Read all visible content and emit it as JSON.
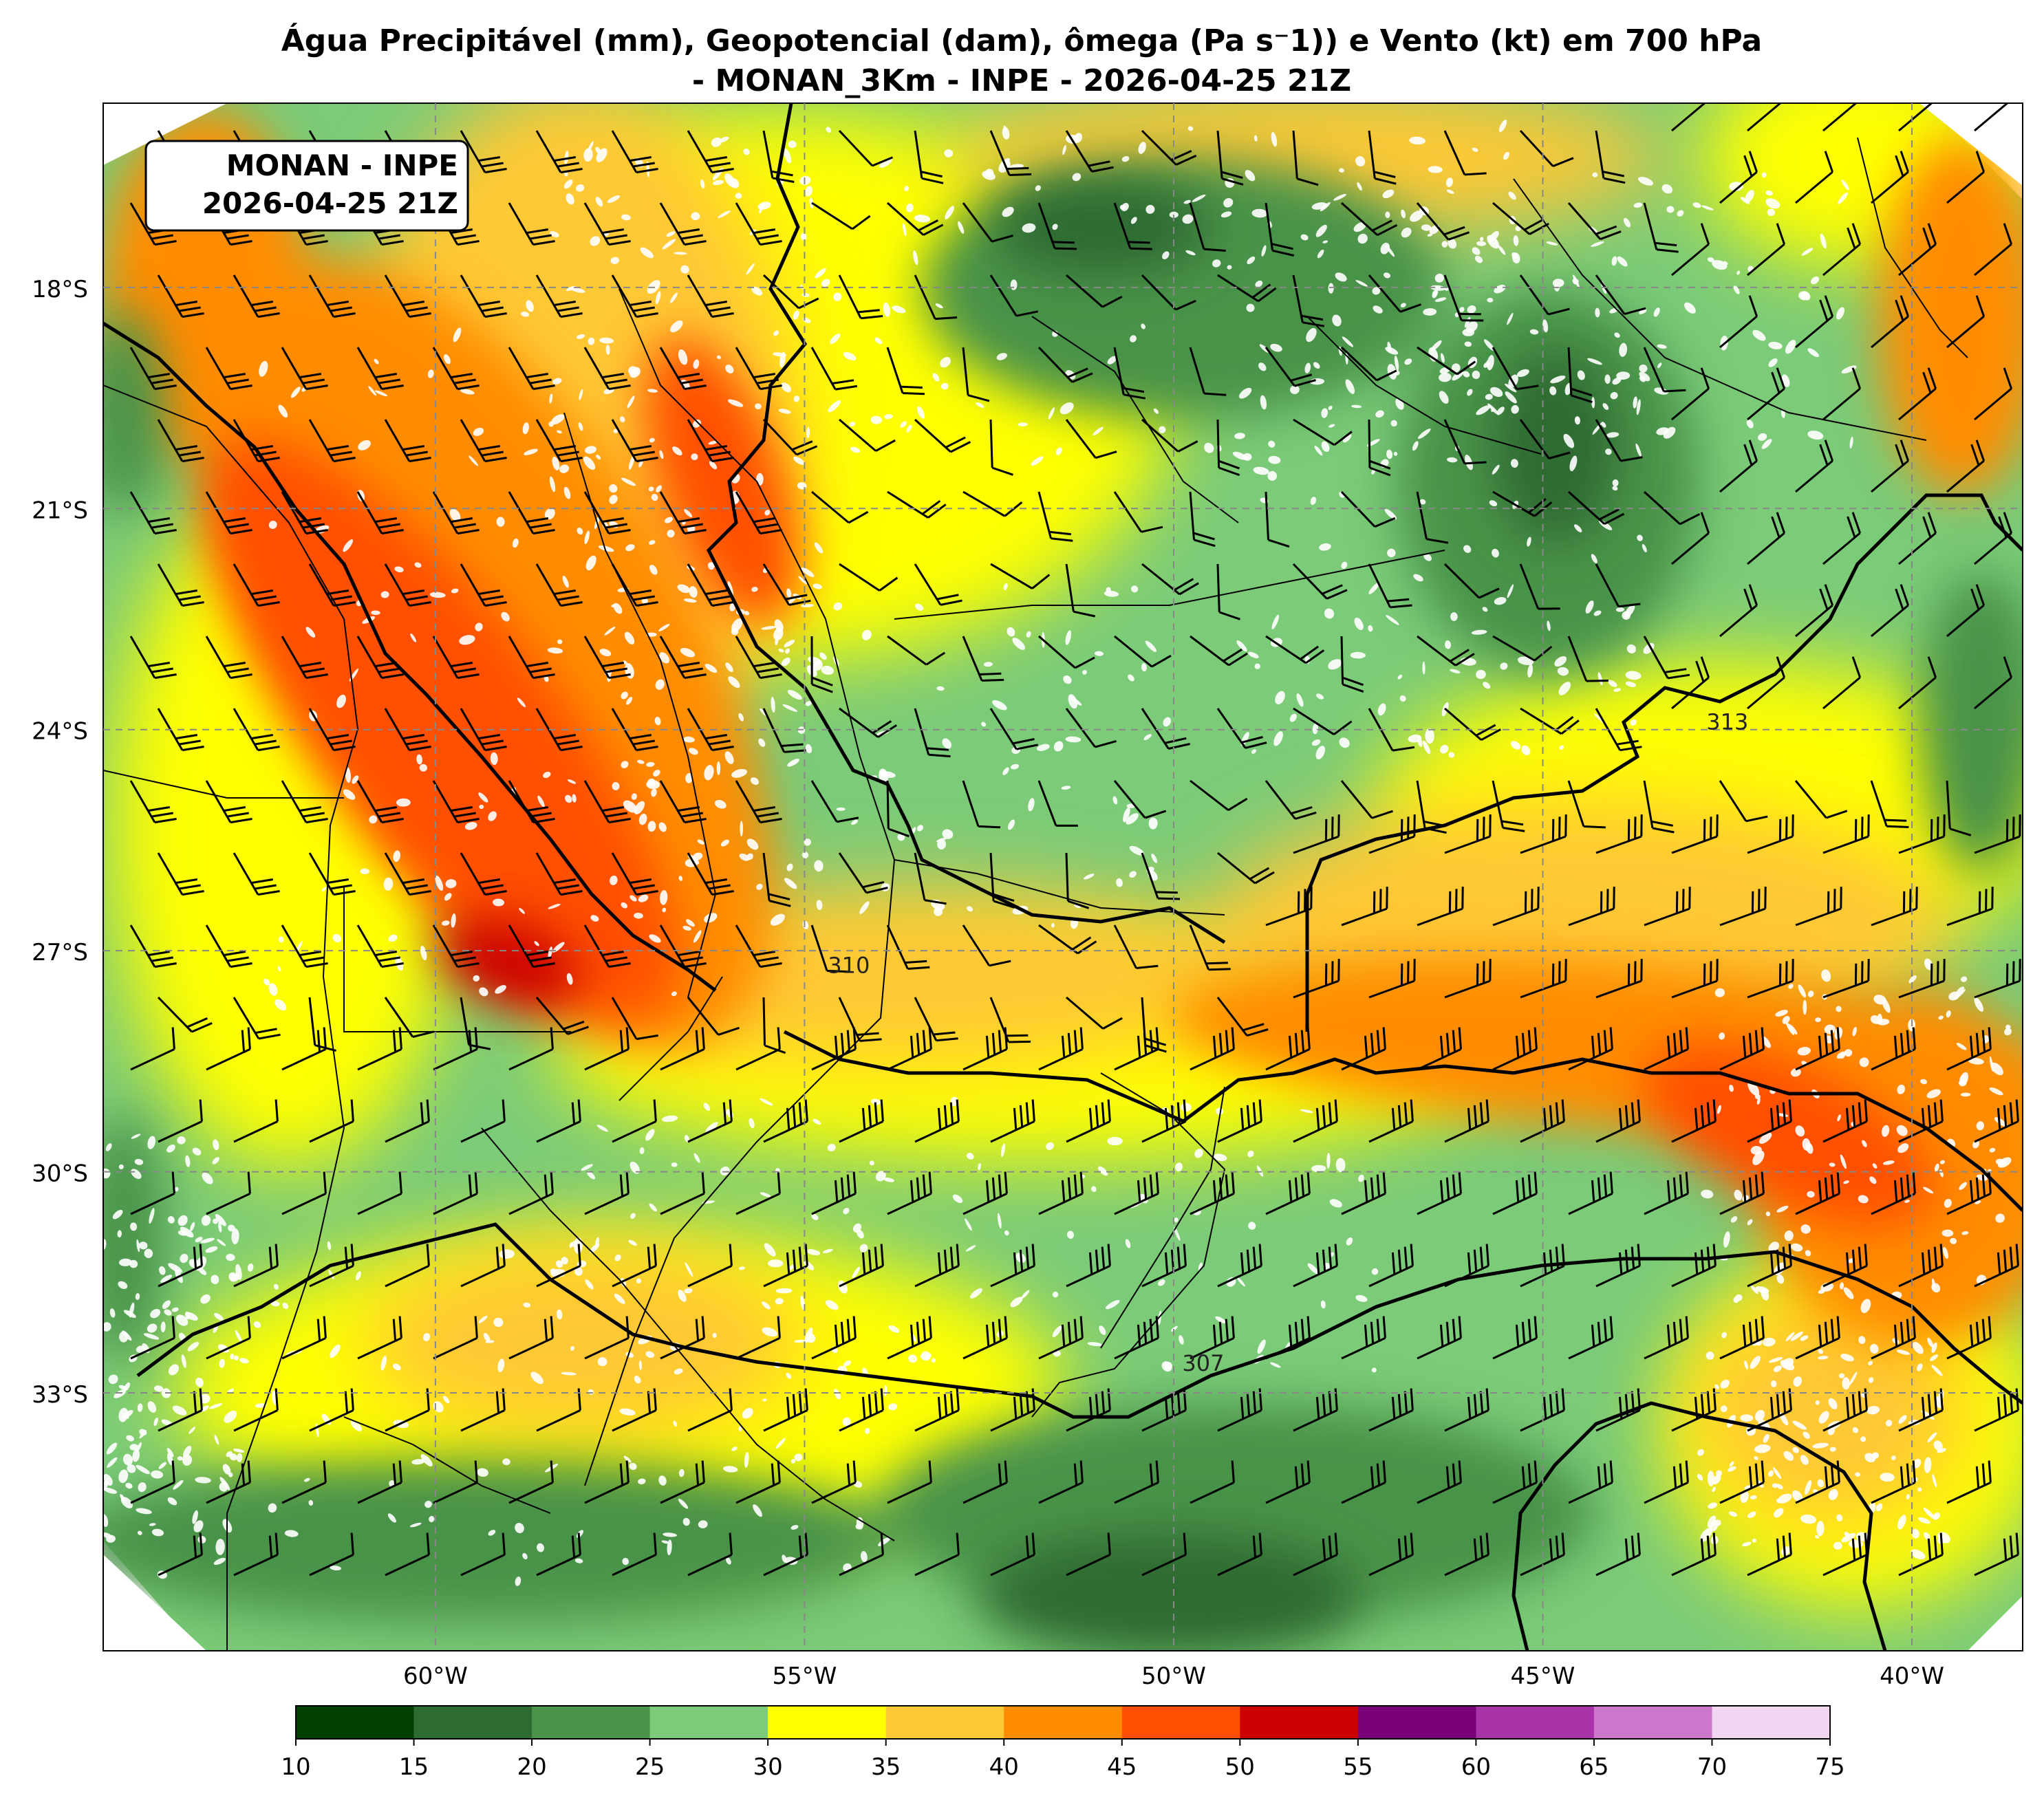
{
  "title": {
    "line1": "Água Precipitável (mm), Geopotencial (dam), ômega (Pa s⁻1)) e Vento (kt) em 700 hPa",
    "line2": "- MONAN_3Km - INPE - 2026-04-25 21Z"
  },
  "badge": {
    "line1": "MONAN - INPE",
    "line2": "2026-04-25 21Z"
  },
  "map": {
    "lat_ticks": [
      {
        "lat": -18,
        "label": "18°S"
      },
      {
        "lat": -21,
        "label": "21°S"
      },
      {
        "lat": -24,
        "label": "24°S"
      },
      {
        "lat": -27,
        "label": "27°S"
      },
      {
        "lat": -30,
        "label": "30°S"
      },
      {
        "lat": -33,
        "label": "33°S"
      }
    ],
    "lon_ticks": [
      {
        "lon": -60,
        "label": "60°W"
      },
      {
        "lon": -55,
        "label": "55°W"
      },
      {
        "lon": -50,
        "label": "50°W"
      },
      {
        "lon": -45,
        "label": "45°W"
      },
      {
        "lon": -40,
        "label": "40°W"
      }
    ],
    "lon_range": [
      -64.5,
      -38.5
    ],
    "lat_range": [
      -36.5,
      -15.5
    ],
    "gridlines": true,
    "contour_labels": [
      {
        "text": "310",
        "lon": -54.4,
        "lat": -27.3
      },
      {
        "text": "313",
        "lon": -42.5,
        "lat": -24.0
      },
      {
        "text": "307",
        "lon": -49.6,
        "lat": -32.7
      }
    ]
  },
  "colorbar": {
    "ticks": [
      "10",
      "15",
      "20",
      "25",
      "30",
      "35",
      "40",
      "45",
      "50",
      "55",
      "60",
      "65",
      "70",
      "75"
    ],
    "colors": [
      "#004000",
      "#2e6b31",
      "#4a934a",
      "#7bcb78",
      "#ffff00",
      "#ffc836",
      "#ff8c00",
      "#ff4f00",
      "#cc0000",
      "#7a007a",
      "#a833a8",
      "#cc77cc",
      "#f0d6f0"
    ]
  }
}
